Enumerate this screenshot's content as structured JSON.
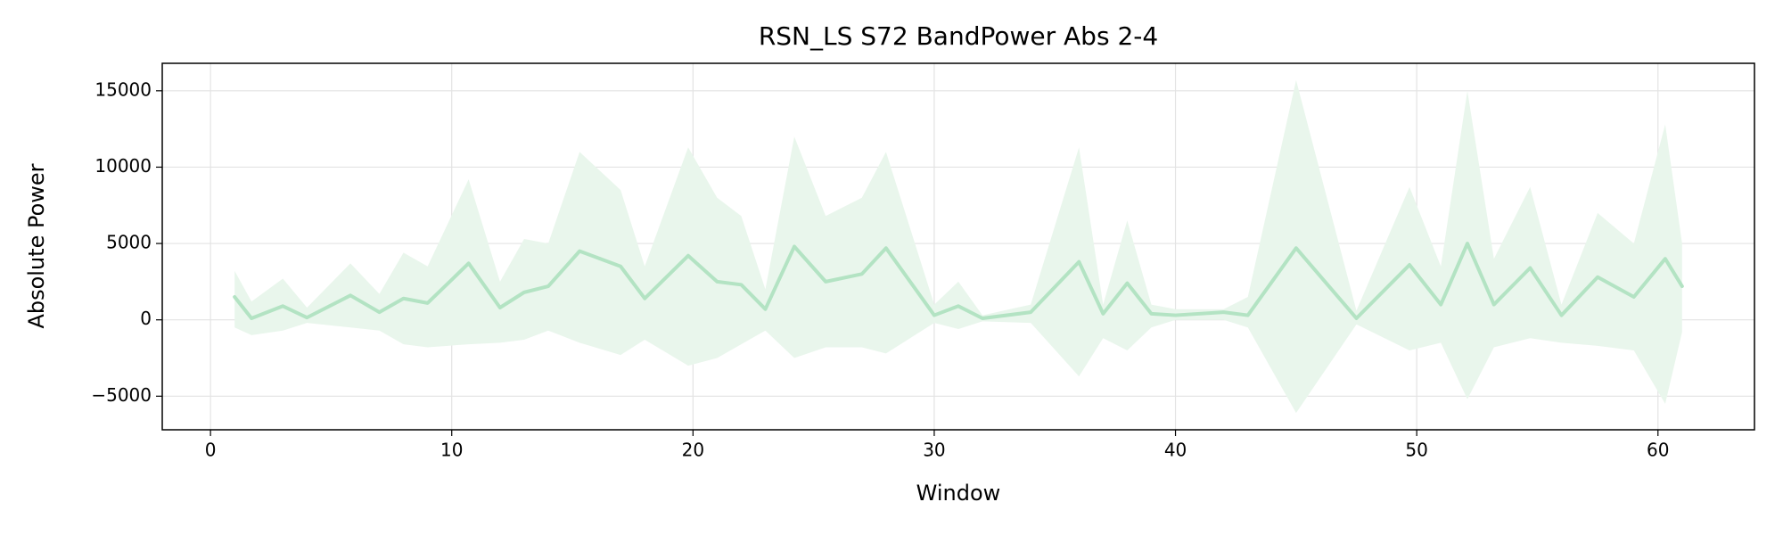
{
  "chart_data": {
    "type": "line-band",
    "title": "RSN_LS S72 BandPower Abs 2-4",
    "xlabel": "Window",
    "ylabel": "Absolute Power",
    "x": [
      1,
      1.7,
      3,
      4,
      5.8,
      7,
      8,
      9,
      10.7,
      12,
      13,
      14,
      15.3,
      17,
      18,
      19.8,
      21,
      22,
      23,
      24.2,
      25.5,
      27,
      28,
      30,
      31,
      32,
      34,
      36,
      37,
      38,
      39,
      40,
      42,
      43,
      45,
      47.5,
      49.7,
      51,
      52.1,
      53.2,
      54.7,
      56,
      57.5,
      59,
      60.3,
      61
    ],
    "values": [
      1500,
      100,
      900,
      150,
      1600,
      500,
      1400,
      1100,
      3700,
      800,
      1800,
      2200,
      4500,
      3500,
      1400,
      4200,
      2500,
      2300,
      700,
      4800,
      2500,
      3000,
      4700,
      300,
      900,
      100,
      500,
      3800,
      400,
      2400,
      400,
      300,
      500,
      300,
      4700,
      100,
      3600,
      1000,
      5000,
      1000,
      3400,
      300,
      2800,
      1500,
      4000,
      2200
    ],
    "upper": [
      3200,
      1200,
      2700,
      800,
      3700,
      1700,
      4400,
      3500,
      9200,
      2500,
      5300,
      5000,
      11000,
      8500,
      3500,
      11300,
      8000,
      6800,
      2000,
      12000,
      6800,
      8000,
      11000,
      1000,
      2500,
      300,
      1000,
      11300,
      1000,
      6500,
      1000,
      700,
      700,
      1500,
      15700,
      600,
      8700,
      3500,
      15000,
      4000,
      8700,
      1000,
      7000,
      5000,
      12800,
      5000
    ],
    "lower": [
      -500,
      -1000,
      -700,
      -200,
      -500,
      -700,
      -1600,
      -1800,
      -1600,
      -1500,
      -1300,
      -700,
      -1500,
      -2300,
      -1300,
      -3000,
      -2500,
      -1600,
      -700,
      -2500,
      -1800,
      -1800,
      -2200,
      -200,
      -600,
      -100,
      -200,
      -3700,
      -1200,
      -2000,
      -500,
      0,
      0,
      -500,
      -6100,
      -300,
      -2000,
      -1500,
      -5200,
      -1800,
      -1200,
      -1500,
      -1700,
      -2000,
      -5500,
      -800
    ],
    "color": "#b3e3c3",
    "band_color": "#e9f6ec",
    "xlim": [
      -2,
      64
    ],
    "xticks": [
      0,
      10,
      20,
      30,
      40,
      50,
      60
    ],
    "ylim": [
      -7200,
      16800
    ],
    "yticks": [
      {
        "value": -5000,
        "label": "−5000"
      },
      0,
      5000,
      10000,
      15000
    ],
    "grid": true
  }
}
